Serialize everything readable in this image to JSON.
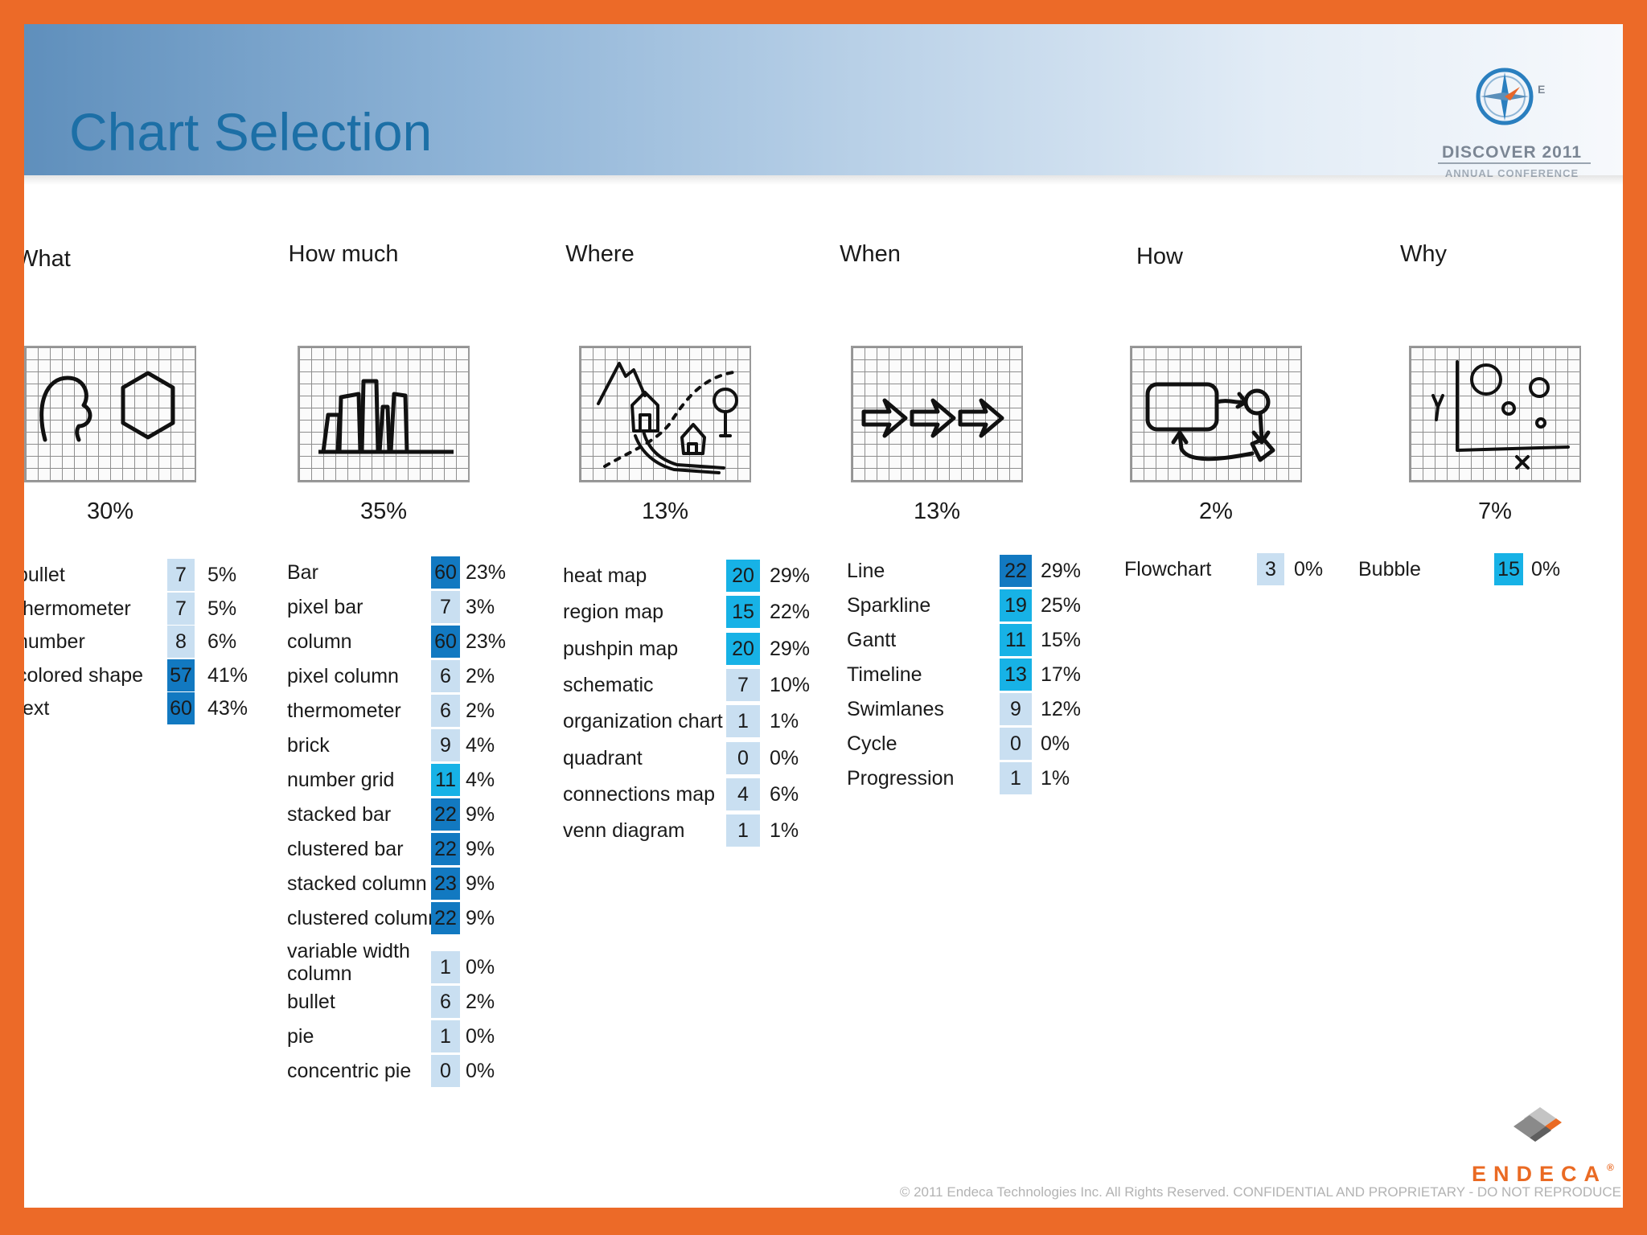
{
  "title": "Chart Selection",
  "conference": {
    "name": "DISCOVER 2011",
    "subtitle": "ANNUAL CONFERENCE",
    "compass_letter": "E"
  },
  "colors": {
    "frame": "#ec6a28",
    "title": "#1c6fa6",
    "count_pale": "#c9dff1",
    "count_bright": "#17b2e6",
    "count_dark": "#1279c1"
  },
  "columns": [
    {
      "heading": "What",
      "share": "30%",
      "sketch_icon": "face-and-hexagon-sketch",
      "rows": [
        {
          "label": "bullet",
          "count": "7",
          "pct": "5%",
          "shade": "pale"
        },
        {
          "label": "thermometer",
          "count": "7",
          "pct": "5%",
          "shade": "pale"
        },
        {
          "label": "number",
          "count": "8",
          "pct": "6%",
          "shade": "pale"
        },
        {
          "label": "colored shape",
          "count": "57",
          "pct": "41%",
          "shade": "dark"
        },
        {
          "label": "text",
          "count": "60",
          "pct": "43%",
          "shade": "dark"
        }
      ]
    },
    {
      "heading": "How much",
      "share": "35%",
      "sketch_icon": "bar-chart-sketch",
      "rows": [
        {
          "label": "Bar",
          "count": "60",
          "pct": "23%",
          "shade": "dark"
        },
        {
          "label": "pixel bar",
          "count": "7",
          "pct": "3%",
          "shade": "pale"
        },
        {
          "label": "column",
          "count": "60",
          "pct": "23%",
          "shade": "dark"
        },
        {
          "label": "pixel column",
          "count": "6",
          "pct": "2%",
          "shade": "pale"
        },
        {
          "label": "thermometer",
          "count": "6",
          "pct": "2%",
          "shade": "pale"
        },
        {
          "label": "brick",
          "count": "9",
          "pct": "4%",
          "shade": "pale"
        },
        {
          "label": "number grid",
          "count": "11",
          "pct": "4%",
          "shade": "bright"
        },
        {
          "label": "stacked bar",
          "count": "22",
          "pct": "9%",
          "shade": "dark"
        },
        {
          "label": "clustered bar",
          "count": "22",
          "pct": "9%",
          "shade": "dark"
        },
        {
          "label": "stacked column",
          "count": "23",
          "pct": "9%",
          "shade": "dark"
        },
        {
          "label": "clustered column",
          "count": "22",
          "pct": "9%",
          "shade": "dark"
        },
        {
          "label": "variable width column",
          "count": "1",
          "pct": "0%",
          "shade": "pale"
        },
        {
          "label": "bullet",
          "count": "6",
          "pct": "2%",
          "shade": "pale"
        },
        {
          "label": "pie",
          "count": "1",
          "pct": "0%",
          "shade": "pale"
        },
        {
          "label": "concentric pie",
          "count": "0",
          "pct": "0%",
          "shade": "pale"
        }
      ]
    },
    {
      "heading": "Where",
      "share": "13%",
      "sketch_icon": "map-sketch",
      "rows": [
        {
          "label": "heat map",
          "count": "20",
          "pct": "29%",
          "shade": "bright"
        },
        {
          "label": "region map",
          "count": "15",
          "pct": "22%",
          "shade": "bright"
        },
        {
          "label": "pushpin map",
          "count": "20",
          "pct": "29%",
          "shade": "bright"
        },
        {
          "label": "schematic",
          "count": "7",
          "pct": "10%",
          "shade": "pale"
        },
        {
          "label": "organization chart",
          "count": "1",
          "pct": "1%",
          "shade": "pale"
        },
        {
          "label": "quadrant",
          "count": "0",
          "pct": "0%",
          "shade": "pale"
        },
        {
          "label": "connections map",
          "count": "4",
          "pct": "6%",
          "shade": "pale"
        },
        {
          "label": "venn diagram",
          "count": "1",
          "pct": "1%",
          "shade": "pale"
        }
      ]
    },
    {
      "heading": "When",
      "share": "13%",
      "sketch_icon": "timeline-arrows-sketch",
      "rows": [
        {
          "label": "Line",
          "count": "22",
          "pct": "29%",
          "shade": "dark"
        },
        {
          "label": "Sparkline",
          "count": "19",
          "pct": "25%",
          "shade": "bright"
        },
        {
          "label": "Gantt",
          "count": "11",
          "pct": "15%",
          "shade": "bright"
        },
        {
          "label": "Timeline",
          "count": "13",
          "pct": "17%",
          "shade": "bright"
        },
        {
          "label": "Swimlanes",
          "count": "9",
          "pct": "12%",
          "shade": "pale"
        },
        {
          "label": "Cycle",
          "count": "0",
          "pct": "0%",
          "shade": "pale"
        },
        {
          "label": "Progression",
          "count": "1",
          "pct": "1%",
          "shade": "pale"
        }
      ]
    },
    {
      "heading": "How",
      "share": "2%",
      "sketch_icon": "flowchart-sketch",
      "rows": [
        {
          "label": "Flowchart",
          "count": "3",
          "pct": "0%",
          "shade": "pale"
        }
      ]
    },
    {
      "heading": "Why",
      "share": "7%",
      "sketch_icon": "bubble-chart-sketch",
      "rows": [
        {
          "label": "Bubble",
          "count": "15",
          "pct": "0%",
          "shade": "bright"
        }
      ]
    }
  ],
  "brand": {
    "name": "ENDECA",
    "mark": "®"
  },
  "footer": "© 2011 Endeca Technologies Inc. All Rights Reserved.  CONFIDENTIAL AND PROPRIETARY - DO NOT REPRODUCE"
}
